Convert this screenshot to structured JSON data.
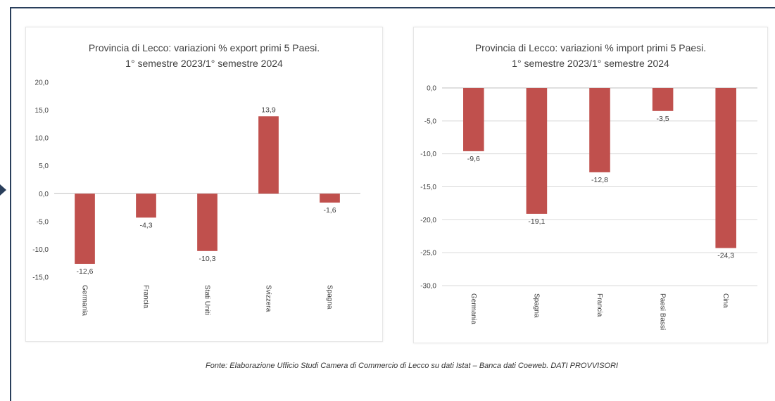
{
  "source_note": "Fonte: Elaborazione Ufficio Studi Camera di Commercio di Lecco su dati Istat – Banca dati Coeweb. DATI PROVVISORI",
  "colors": {
    "bar": "#c0504d",
    "grid": "#d9d9d9",
    "text": "#404040",
    "frame": "#2a3f5c"
  },
  "chart_data": [
    {
      "id": "export",
      "type": "bar",
      "title_line1": "Provincia di Lecco: variazioni % export primi 5 Paesi.",
      "title_line2": "1° semestre 2023/1° semestre 2024",
      "categories": [
        "Germania",
        "Francia",
        "Stati Uniti",
        "Svizzera",
        "Spagna"
      ],
      "values": [
        -12.6,
        -4.3,
        -10.3,
        13.9,
        -1.6
      ],
      "value_labels": [
        "-12,6",
        "-4,3",
        "-10,3",
        "13,9",
        "-1,6"
      ],
      "ylim": [
        -15,
        20
      ],
      "yticks": [
        20,
        15,
        10,
        5,
        0,
        -5,
        -10,
        -15
      ],
      "ytick_labels": [
        "20,0",
        "15,0",
        "10,0",
        "5,0",
        "0,0",
        "-5,0",
        "-10,0",
        "-15,0"
      ],
      "grid": false,
      "xlabel": "",
      "ylabel": ""
    },
    {
      "id": "import",
      "type": "bar",
      "title_line1": "Provincia di Lecco: variazioni % import primi 5 Paesi.",
      "title_line2": "1° semestre 2023/1° semestre 2024",
      "categories": [
        "Germania",
        "Spagna",
        "Francia",
        "Paesi Bassi",
        "Cina"
      ],
      "values": [
        -9.6,
        -19.1,
        -12.8,
        -3.5,
        -24.3
      ],
      "value_labels": [
        "-9,6",
        "-19,1",
        "-12,8",
        "-3,5",
        "-24,3"
      ],
      "ylim": [
        -30,
        0
      ],
      "yticks": [
        0,
        -5,
        -10,
        -15,
        -20,
        -25,
        -30
      ],
      "ytick_labels": [
        "0,0",
        "-5,0",
        "-10,0",
        "-15,0",
        "-20,0",
        "-25,0",
        "-30,0"
      ],
      "grid": true,
      "xlabel": "",
      "ylabel": ""
    }
  ]
}
